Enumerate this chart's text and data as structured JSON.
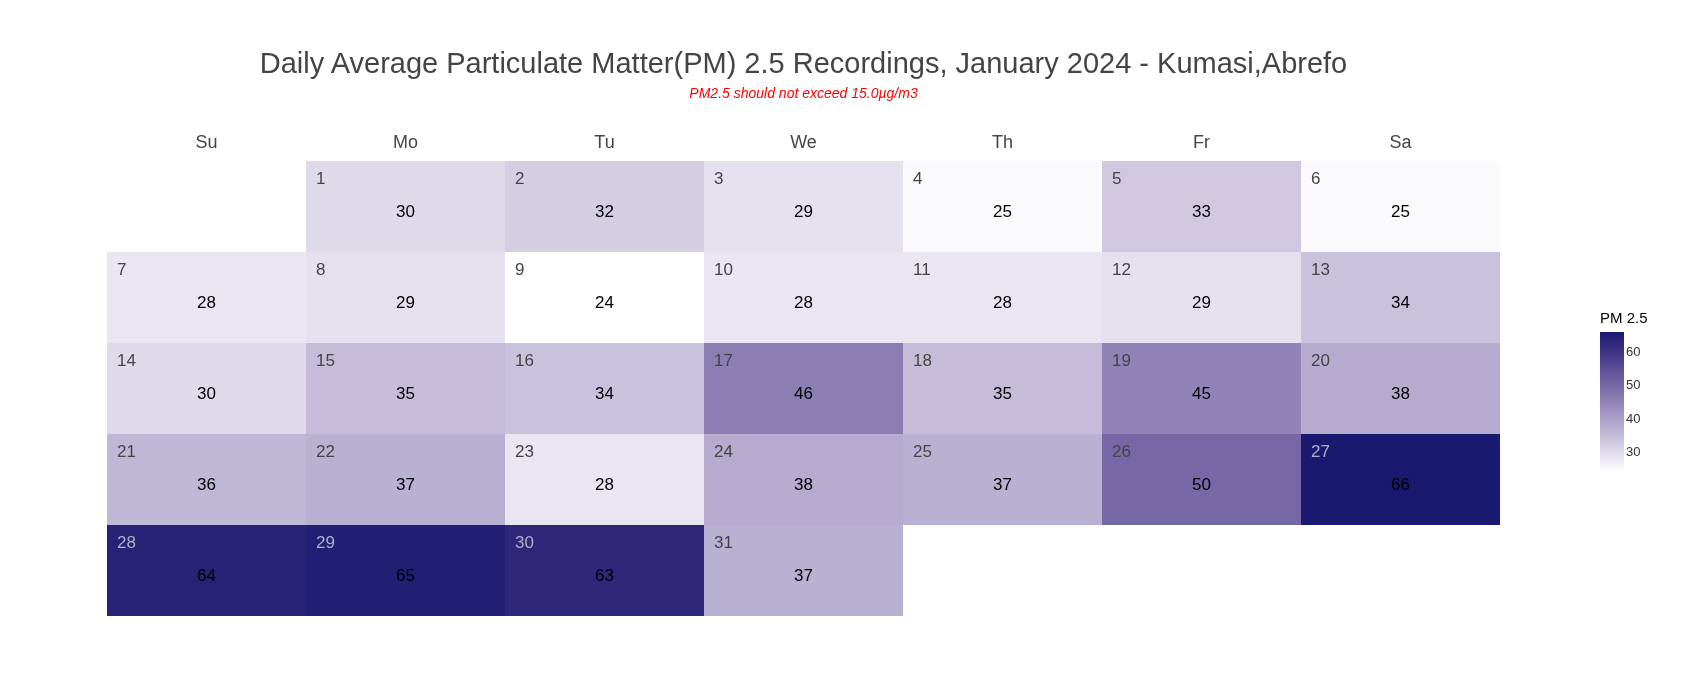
{
  "chart_data": {
    "type": "heatmap",
    "title": "Daily Average Particulate Matter(PM) 2.5 Recordings, January 2024 - Kumasi,Abrefo",
    "subtitle": "PM2.5 should not exceed 15.0µg/m3",
    "clabel": "PM 2.5",
    "categories": [
      "Su",
      "Mo",
      "Tu",
      "We",
      "Th",
      "Fr",
      "Sa"
    ],
    "y_categories": [
      null,
      null,
      null,
      null,
      null
    ],
    "cells": [
      [
        null,
        30,
        32,
        29,
        25,
        33,
        25
      ],
      [
        28,
        29,
        24,
        28,
        28,
        29,
        34
      ],
      [
        30,
        35,
        34,
        46,
        35,
        45,
        38
      ],
      [
        36,
        37,
        28,
        38,
        37,
        50,
        66
      ],
      [
        64,
        65,
        63,
        37,
        null,
        null,
        null
      ]
    ],
    "annotations": [
      "1",
      "2",
      "3",
      "4",
      "5",
      "6",
      "7",
      "8",
      "9",
      "10",
      "11",
      "12",
      "13",
      "14",
      "15",
      "16",
      "17",
      "18",
      "19",
      "20",
      "21",
      "22",
      "23",
      "24",
      "25",
      "26",
      "27",
      "28",
      "29",
      "30",
      "31"
    ],
    "data_labels": true,
    "clim": [
      24,
      66
    ],
    "cticks": [
      30,
      40,
      50,
      60
    ]
  }
}
